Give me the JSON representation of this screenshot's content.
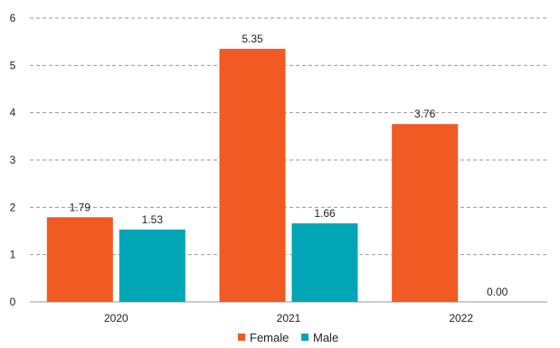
{
  "chart_data": {
    "type": "bar",
    "categories": [
      "2020",
      "2021",
      "2022"
    ],
    "series": [
      {
        "name": "Female",
        "values": [
          1.79,
          5.35,
          3.76
        ],
        "labels": [
          "1.79",
          "5.35",
          "3.76"
        ],
        "color": "#F15A22"
      },
      {
        "name": "Male",
        "values": [
          1.53,
          1.66,
          0.0
        ],
        "labels": [
          "1.53",
          "1.66",
          "0.00"
        ],
        "color": "#00A6B6"
      }
    ],
    "title": "",
    "xlabel": "",
    "ylabel": "",
    "ylim": [
      0,
      6
    ],
    "yticks": [
      "0",
      "1",
      "2",
      "3",
      "4",
      "5",
      "6"
    ],
    "grid": true,
    "legend_position": "bottom-center"
  }
}
